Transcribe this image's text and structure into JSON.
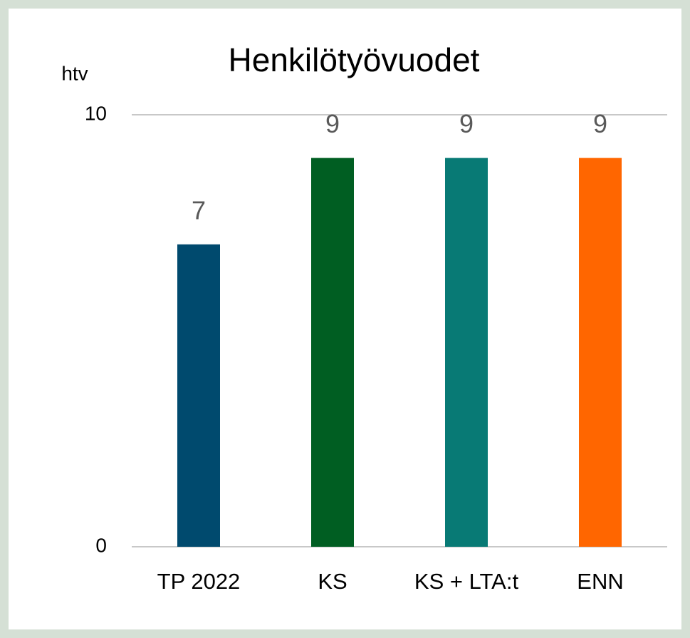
{
  "chart_data": {
    "type": "bar",
    "title": "Henkilötyövuodet",
    "y_axis_label": "htv",
    "categories": [
      "TP 2022",
      "KS",
      "KS + LTA:t",
      "ENN"
    ],
    "values": [
      7,
      9,
      9,
      9
    ],
    "colors": [
      "#004a6e",
      "#005e22",
      "#087a75",
      "#ff6600"
    ],
    "ylim": [
      0,
      10
    ],
    "yticks": [
      0,
      10
    ],
    "grid": true
  }
}
